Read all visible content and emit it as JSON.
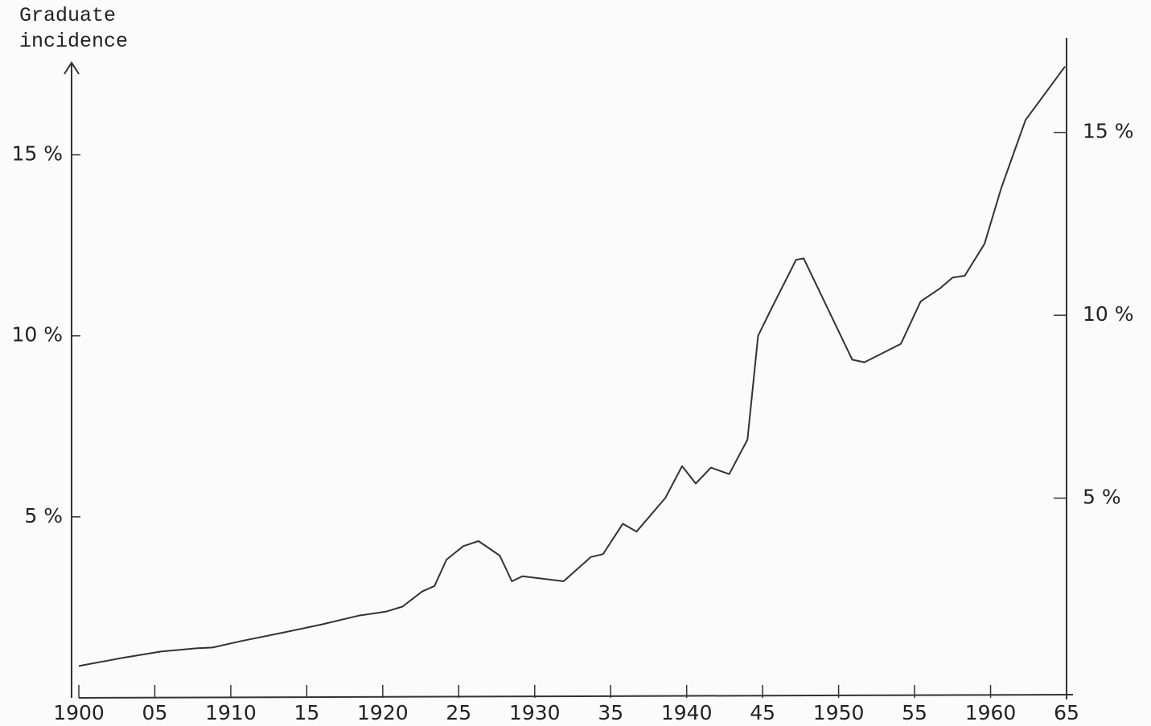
{
  "chart_data": {
    "type": "line",
    "title": "Graduate incidence",
    "x": [
      1900,
      1902.8,
      1905.4,
      1907.8,
      1908.8,
      1910.7,
      1913.3,
      1916,
      1918.4,
      1920.2,
      1921.3,
      1922.6,
      1923.4,
      1924.2,
      1925.3,
      1926.3,
      1927.7,
      1928.5,
      1929.2,
      1931.9,
      1933.7,
      1934.5,
      1935.8,
      1936.7,
      1938.6,
      1939.7,
      1940.6,
      1941.6,
      1942.8,
      1944,
      1944.7,
      1945.6,
      1947.2,
      1947.7,
      1950.9,
      1951.7,
      1954.1,
      1955.4,
      1956.7,
      1957.5,
      1958.3,
      1959.6,
      1960.7,
      1962.3,
      1964.9
    ],
    "series": [
      {
        "color": "#333333",
        "values": [
          0.88,
          1.1,
          1.28,
          1.37,
          1.39,
          1.57,
          1.79,
          2.03,
          2.27,
          2.38,
          2.52,
          2.94,
          3.09,
          3.82,
          4.19,
          4.33,
          3.93,
          3.22,
          3.36,
          3.22,
          3.89,
          3.97,
          4.81,
          4.59,
          5.52,
          6.4,
          5.92,
          6.36,
          6.18,
          7.13,
          10.0,
          10.77,
          12.1,
          12.14,
          9.34,
          9.27,
          9.78,
          10.95,
          11.32,
          11.61,
          11.66,
          12.54,
          14.08,
          15.96,
          17.44
        ]
      }
    ],
    "xlim": [
      1900,
      1965
    ],
    "xticks": [
      1900,
      {
        "value": 1905,
        "label": "05"
      },
      1910,
      {
        "value": 1915,
        "label": "15"
      },
      1920,
      {
        "value": 1925,
        "label": "25"
      },
      1930,
      {
        "value": 1935,
        "label": "35"
      },
      1940,
      {
        "value": 1945,
        "label": "45"
      },
      1950,
      {
        "value": 1955,
        "label": "55"
      },
      1960,
      {
        "value": 1965,
        "label": "65"
      }
    ],
    "ylim": [
      0,
      17.5
    ],
    "yticks": [
      {
        "value": 5,
        "label": "5 %"
      },
      {
        "value": 10,
        "label": "10 %"
      },
      {
        "value": 15,
        "label": "15 %"
      }
    ],
    "y2lim": [
      0,
      17.5
    ],
    "y2ticks": [
      {
        "value": 5,
        "label": "5 %"
      },
      {
        "value": 10,
        "label": "10 %"
      },
      {
        "value": 15,
        "label": "15 %"
      }
    ]
  }
}
